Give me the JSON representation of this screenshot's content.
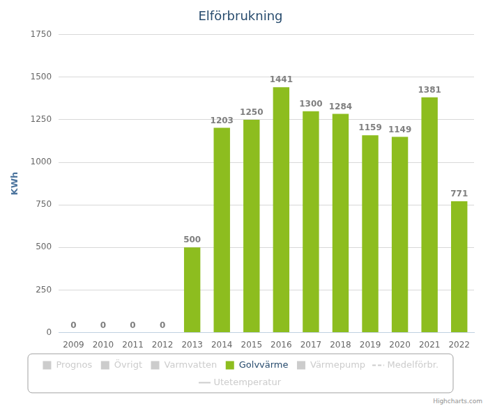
{
  "chart_data": {
    "type": "bar",
    "title": "Elförbrukning",
    "y_label": "KWh",
    "categories": [
      "2009",
      "2010",
      "2011",
      "2012",
      "2013",
      "2014",
      "2015",
      "2016",
      "2017",
      "2018",
      "2019",
      "2020",
      "2021",
      "2022"
    ],
    "series": [
      {
        "name": "Prognos",
        "color": "#cccccc",
        "values": [
          null,
          null,
          null,
          null,
          null,
          null,
          null,
          null,
          null,
          null,
          null,
          null,
          null,
          null
        ]
      },
      {
        "name": "Övrigt",
        "color": "#cccccc",
        "values": [
          null,
          null,
          null,
          null,
          null,
          null,
          null,
          null,
          null,
          null,
          null,
          null,
          null,
          null
        ]
      },
      {
        "name": "Varmvatten",
        "color": "#cccccc",
        "values": [
          null,
          null,
          null,
          null,
          null,
          null,
          null,
          null,
          null,
          null,
          null,
          null,
          null,
          null
        ]
      },
      {
        "name": "Golvvärme",
        "color": "#8dbd1f",
        "values": [
          0,
          0,
          0,
          0,
          500,
          1203,
          1250,
          1441,
          1300,
          1284,
          1159,
          1149,
          1381,
          771
        ]
      },
      {
        "name": "Värmepump",
        "color": "#cccccc",
        "values": [
          null,
          null,
          null,
          null,
          null,
          null,
          null,
          null,
          null,
          null,
          null,
          null,
          null,
          null
        ]
      },
      {
        "name": "Medelförbr.",
        "color": "#cccccc",
        "type": "line",
        "line_style": "dashed",
        "values": [
          null,
          null,
          null,
          null,
          null,
          null,
          null,
          null,
          null,
          null,
          null,
          null,
          null,
          null
        ]
      },
      {
        "name": "Utetemperatur",
        "color": "#cccccc",
        "type": "line",
        "line_style": "solid",
        "values": [
          null,
          null,
          null,
          null,
          null,
          null,
          null,
          null,
          null,
          null,
          null,
          null,
          null,
          null
        ]
      }
    ],
    "ylim": [
      0,
      1750
    ],
    "yticks": [
      0,
      250,
      500,
      750,
      1000,
      1250,
      1500,
      1750
    ],
    "grid": true,
    "data_labels": true,
    "legend": "bottom",
    "credits": "Highcharts.com"
  }
}
